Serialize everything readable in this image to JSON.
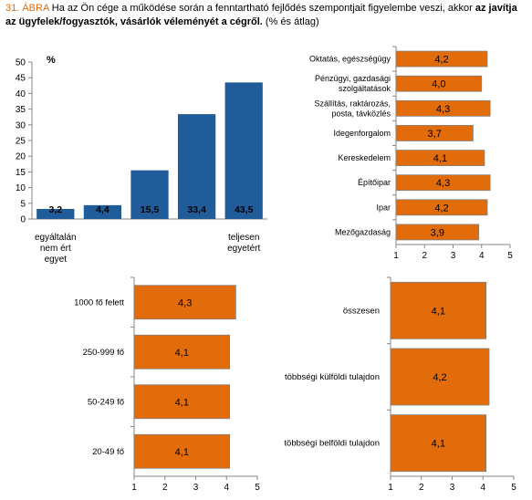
{
  "caption": {
    "fig_number": "31. ÁBRA",
    "text_plain": "Ha az Ön cége a működése során a fenntartható fejlődés szempontjait figyelembe veszi, akkor",
    "text_bold": "az javítja az ügyfelek/fogyasztók, vásárlók véleményét a cégről.",
    "text_suffix": "(% és átlag)"
  },
  "colors": {
    "blue": "#1f5c99",
    "orange": "#e36c0a",
    "bar_border": "#7f7f7f",
    "axis": "#868686"
  },
  "chart_data": [
    {
      "type": "bar",
      "unit_label": "%",
      "categories": [
        "egyáltalán nem ért egyet",
        "",
        "",
        "",
        "teljesen egyetért"
      ],
      "values": [
        3.2,
        4.4,
        15.5,
        33.4,
        43.5
      ],
      "value_labels": [
        "3,2",
        "4,4",
        "15,5",
        "33,4",
        "43,5"
      ],
      "ylim": [
        0,
        50
      ],
      "yticks": [
        "0",
        "5",
        "10",
        "15",
        "20",
        "25",
        "30",
        "35",
        "40",
        "45",
        "50"
      ],
      "grid": false,
      "color": "#1f5c99"
    },
    {
      "type": "bar",
      "orientation": "horizontal",
      "categories": [
        "Oktatás, egészségügy",
        "Pénzügyi, gazdasági szolgáltatások",
        "Szállítás, raktározás, posta, távközlés",
        "Idegenforgalom",
        "Kereskedelem",
        "Építőipar",
        "Ipar",
        "Mezőgazdaság"
      ],
      "values": [
        4.2,
        4.0,
        4.3,
        3.7,
        4.1,
        4.3,
        4.2,
        3.9
      ],
      "value_labels": [
        "4,2",
        "4,0",
        "4,3",
        "3,7",
        "4,1",
        "4,3",
        "4,2",
        "3,9"
      ],
      "xlim": [
        1,
        5
      ],
      "xticks": [
        "1",
        "2",
        "3",
        "4",
        "5"
      ],
      "color": "#e36c0a"
    },
    {
      "type": "bar",
      "orientation": "horizontal",
      "categories": [
        "1000 fő felett",
        "250-999 fő",
        "50-249 fő",
        "20-49 fő"
      ],
      "values": [
        4.3,
        4.1,
        4.1,
        4.1
      ],
      "value_labels": [
        "4,3",
        "4,1",
        "4,1",
        "4,1"
      ],
      "xlim": [
        1,
        5
      ],
      "xticks": [
        "1",
        "2",
        "3",
        "4",
        "5"
      ],
      "color": "#e36c0a"
    },
    {
      "type": "bar",
      "orientation": "horizontal",
      "categories": [
        "összesen",
        "többségi külföldi tulajdon",
        "többségi belföldi tulajdon"
      ],
      "values": [
        4.1,
        4.2,
        4.1
      ],
      "value_labels": [
        "4,1",
        "4,2",
        "4,1"
      ],
      "xlim": [
        1,
        5
      ],
      "xticks": [
        "1",
        "2",
        "3",
        "4",
        "5"
      ],
      "color": "#e36c0a"
    }
  ]
}
